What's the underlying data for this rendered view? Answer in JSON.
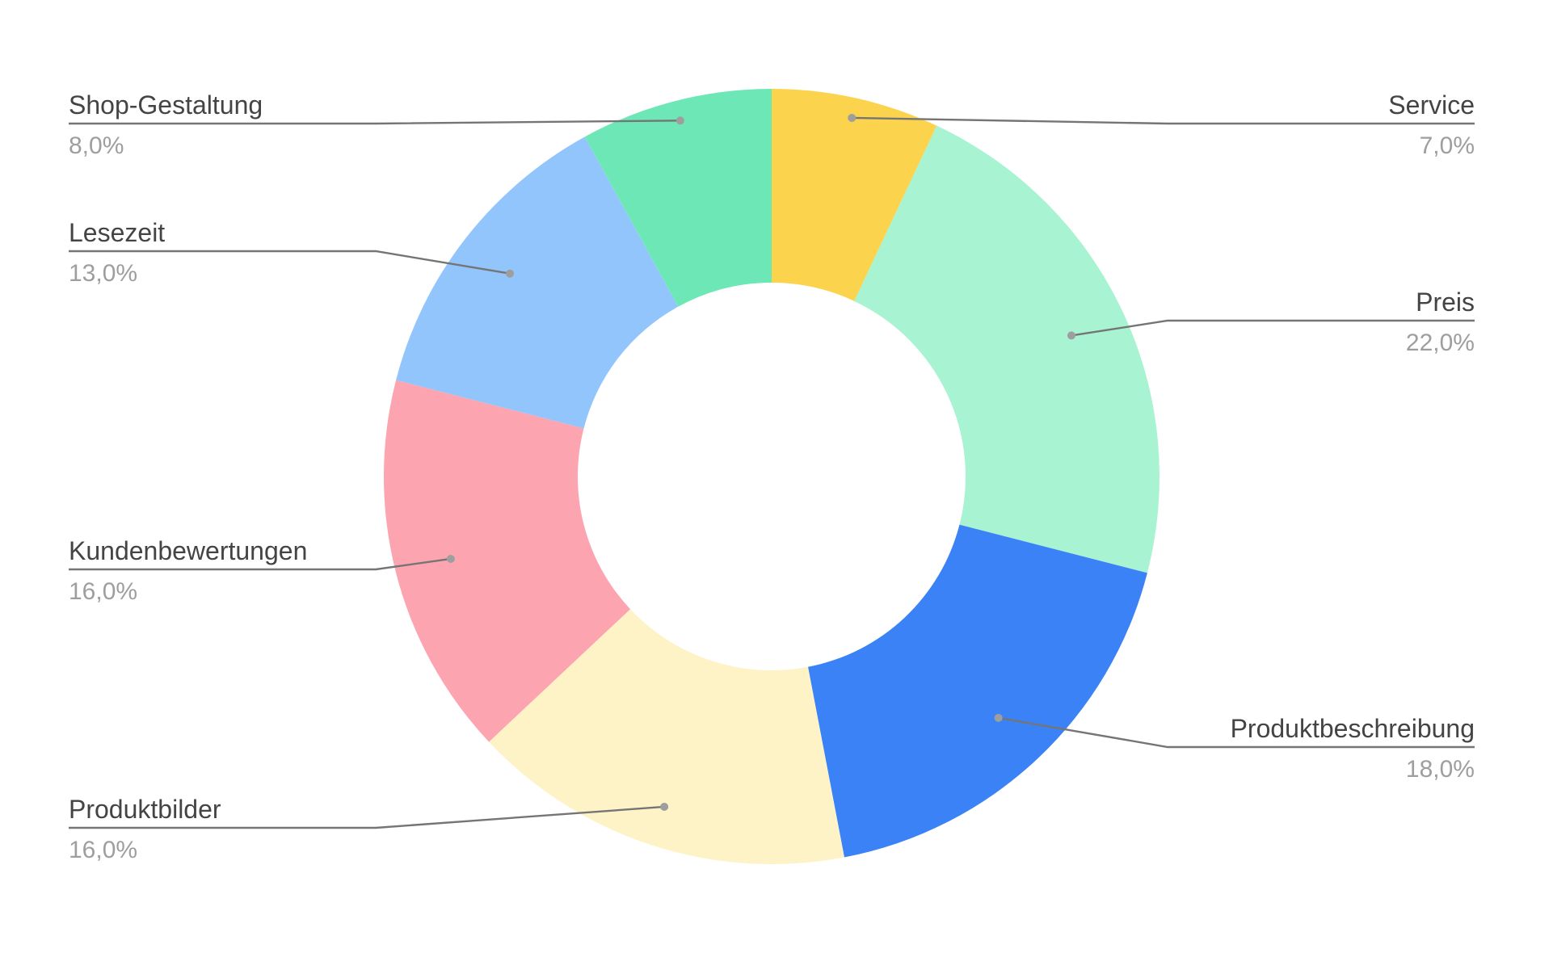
{
  "chart_data": {
    "type": "pie",
    "subtype": "donut",
    "title": "",
    "series": [
      {
        "label": "Service",
        "value_text": "7,0%",
        "value": 7.0,
        "color": "#fcd34d"
      },
      {
        "label": "Preis",
        "value_text": "22,0%",
        "value": 22.0,
        "color": "#a8f3d2"
      },
      {
        "label": "Produktbeschreibung",
        "value_text": "18,0%",
        "value": 18.0,
        "color": "#3b82f6"
      },
      {
        "label": "Produktbilder",
        "value_text": "16,0%",
        "value": 16.0,
        "color": "#fef3c7"
      },
      {
        "label": "Kundenbewertungen",
        "value_text": "16,0%",
        "value": 16.0,
        "color": "#fca5b0"
      },
      {
        "label": "Lesezeit",
        "value_text": "13,0%",
        "value": 13.0,
        "color": "#93c5fd"
      },
      {
        "label": "Shop-Gestaltung",
        "value_text": "8,0%",
        "value": 8.0,
        "color": "#6ee7b7"
      }
    ],
    "legend": "labels on leader lines, left and right of the donut"
  }
}
